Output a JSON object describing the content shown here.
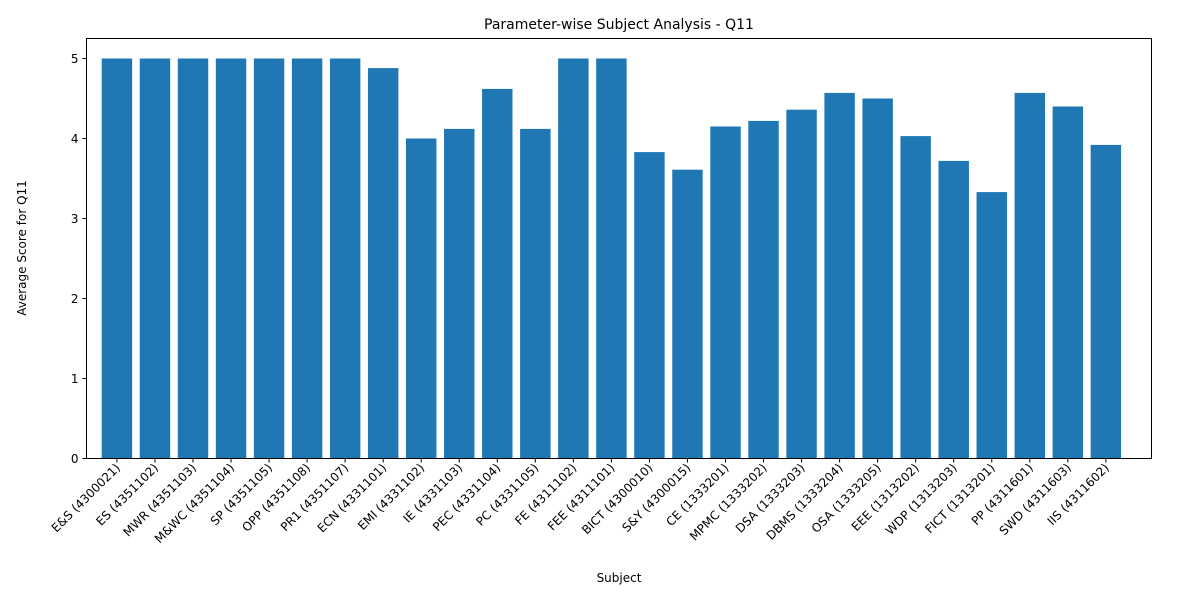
{
  "chart_data": {
    "type": "bar",
    "title": "Parameter-wise Subject Analysis - Q11",
    "xlabel": "Subject",
    "ylabel": "Average Score for Q11",
    "ylim": [
      0,
      5.25
    ],
    "yticks": [
      0,
      1,
      2,
      3,
      4,
      5
    ],
    "grid": false,
    "bar_color": "#1f77b4",
    "categories": [
      "E&S (4300021)",
      "ES (4351102)",
      "MWR (4351103)",
      "M&WC (4351104)",
      "SP (4351105)",
      "OPP (4351108)",
      "PR1 (4351107)",
      "ECN (4331101)",
      "EMI (4331102)",
      "IE (4331103)",
      "PEC (4331104)",
      "PC (4331105)",
      "FE (4311102)",
      "FEE (4311101)",
      "BICT (4300010)",
      "S&Y (4300015)",
      "CE (1333201)",
      "MPMC (1333202)",
      "DSA (1333203)",
      "DBMS (1333204)",
      "OSA (1333205)",
      "EEE (1313202)",
      "WDP (1313203)",
      "FICT (1313201)",
      "PP (4311601)",
      "SWD (4311603)",
      "IIS (4311602)"
    ],
    "values": [
      5.0,
      5.0,
      5.0,
      5.0,
      5.0,
      5.0,
      5.0,
      4.88,
      4.0,
      4.12,
      4.62,
      4.12,
      5.0,
      5.0,
      3.83,
      3.61,
      4.15,
      4.22,
      4.36,
      4.57,
      4.5,
      4.03,
      3.72,
      3.33,
      4.57,
      4.4,
      3.92
    ]
  }
}
